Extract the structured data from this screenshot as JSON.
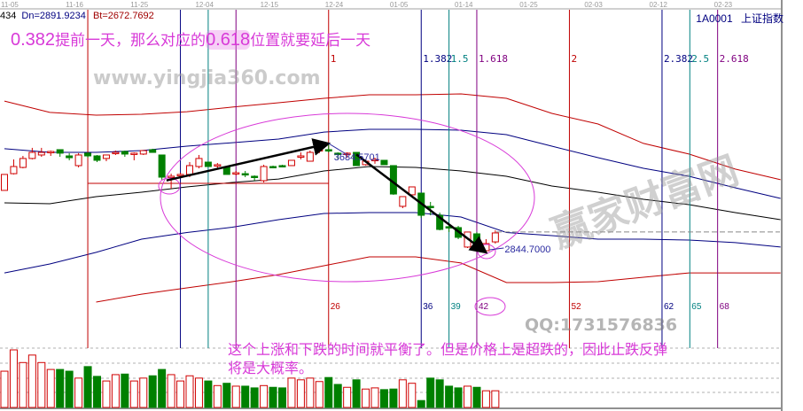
{
  "header": {
    "info_prefix": "434",
    "dn": "Dn=2891.9234",
    "bt": "Bt=2672.7692",
    "symbol_code": "1A0001",
    "symbol_name": "上证指数"
  },
  "annotations": {
    "top_note": {
      "ratio_a": "0.382",
      "text_a": "提前一天，那么对应的",
      "ratio_b": "0.618",
      "text_b": "位置就要延后一天"
    },
    "bottom_note_line1": "这个上涨和下跌的时间就平衡了。但是价格上是超跌的，因此止跌反弹",
    "bottom_note_line2": "将是大概率。",
    "high_label": "3684.5701",
    "low_label": "2844.7000"
  },
  "watermarks": {
    "brand": "赢家财富网",
    "site": "www.yingjia360.com",
    "qq": "QQ:1731576836"
  },
  "colors": {
    "up": "#d00000",
    "down": "#008000",
    "fib_red": "#c00000",
    "fib_blue": "#000080",
    "fib_teal": "#008080",
    "fib_purple": "#800080",
    "annotation": "#d83ad8",
    "label_blue": "#2a2aa0"
  },
  "chart_data": {
    "type": "candlestick",
    "title": "",
    "x_ticks": [
      {
        "index": 0,
        "label": "11-05"
      },
      {
        "index": 7,
        "label": "11-16"
      },
      {
        "index": 14,
        "label": "11-25"
      },
      {
        "index": 21,
        "label": "12-04"
      },
      {
        "index": 28,
        "label": "12-15"
      },
      {
        "index": 35,
        "label": "12-24"
      },
      {
        "index": 42,
        "label": "01-05"
      },
      {
        "index": 49,
        "label": "01-14"
      },
      {
        "index": 56,
        "label": "01-25"
      },
      {
        "index": 63,
        "label": "02-03"
      },
      {
        "index": 70,
        "label": "02-12"
      },
      {
        "index": 77,
        "label": "02-23"
      }
    ],
    "candles_ohlc": [
      [
        3323,
        3446,
        3323,
        3446
      ],
      [
        3452,
        3562,
        3446,
        3507
      ],
      [
        3500,
        3589,
        3493,
        3569
      ],
      [
        3569,
        3651,
        3562,
        3616
      ],
      [
        3596,
        3651,
        3582,
        3616
      ],
      [
        3616,
        3630,
        3589,
        3623
      ],
      [
        3637,
        3637,
        3582,
        3610
      ],
      [
        3589,
        3610,
        3555,
        3575
      ],
      [
        3514,
        3610,
        3500,
        3596
      ],
      [
        3610,
        3616,
        3575,
        3589
      ],
      [
        3589,
        3596,
        3541,
        3555
      ],
      [
        3569,
        3596,
        3548,
        3596
      ],
      [
        3610,
        3630,
        3596,
        3616
      ],
      [
        3623,
        3630,
        3582,
        3603
      ],
      [
        3603,
        3616,
        3555,
        3610
      ],
      [
        3603,
        3630,
        3596,
        3630
      ],
      [
        3637,
        3644,
        3616,
        3616
      ],
      [
        3596,
        3596,
        3405,
        3425
      ],
      [
        3425,
        3452,
        3336,
        3432
      ],
      [
        3439,
        3459,
        3425,
        3446
      ],
      [
        3446,
        3541,
        3425,
        3514
      ],
      [
        3507,
        3596,
        3493,
        3569
      ],
      [
        3541,
        3541,
        3507,
        3507
      ],
      [
        3514,
        3534,
        3493,
        3521
      ],
      [
        3500,
        3500,
        3446,
        3446
      ],
      [
        3452,
        3473,
        3439,
        3459
      ],
      [
        3452,
        3473,
        3425,
        3446
      ],
      [
        3432,
        3439,
        3398,
        3425
      ],
      [
        3398,
        3521,
        3384,
        3507
      ],
      [
        3507,
        3514,
        3493,
        3500
      ],
      [
        3514,
        3521,
        3500,
        3507
      ],
      [
        3514,
        3555,
        3514,
        3555
      ],
      [
        3582,
        3616,
        3562,
        3589
      ],
      [
        3548,
        3630,
        3548,
        3616
      ],
      [
        3630,
        3664,
        3610,
        3637
      ],
      [
        3637,
        3684.57,
        3616,
        3630
      ],
      [
        3610,
        3616,
        3562,
        3603
      ],
      [
        3603,
        3616,
        3575,
        3610
      ],
      [
        3616,
        3616,
        3514,
        3514
      ],
      [
        3521,
        3562,
        3514,
        3548
      ],
      [
        3555,
        3575,
        3528,
        3562
      ],
      [
        3555,
        3555,
        3521,
        3521
      ],
      [
        3514,
        3514,
        3289,
        3295
      ],
      [
        3200,
        3275,
        3186,
        3275
      ],
      [
        3289,
        3350,
        3275,
        3350
      ],
      [
        3302,
        3302,
        3111,
        3131
      ],
      [
        3200,
        3234,
        3131,
        3193
      ],
      [
        3131,
        3152,
        3015,
        3022
      ],
      [
        3043,
        3056,
        3002,
        3036
      ],
      [
        3036,
        3049,
        2947,
        2961
      ],
      [
        2886,
        3002,
        2879,
        3002
      ],
      [
        2988,
        3002,
        2879,
        2899
      ],
      [
        2858,
        2947,
        2844.7,
        2913
      ],
      [
        2926,
        3015,
        2913,
        2995
      ]
    ],
    "volume_relative": [
      63,
      100,
      78,
      91,
      78,
      66,
      66,
      63,
      51,
      71,
      54,
      46,
      57,
      58,
      46,
      51,
      55,
      66,
      57,
      46,
      55,
      51,
      46,
      38,
      42,
      37,
      37,
      34,
      38,
      35,
      34,
      51,
      48,
      51,
      45,
      52,
      40,
      35,
      48,
      32,
      34,
      31,
      32,
      48,
      42,
      12,
      51,
      48,
      37,
      34,
      37,
      35,
      29,
      29
    ],
    "bands": [
      {
        "color": "#c00000",
        "points": [
          [
            0,
            4012
          ],
          [
            4.9,
            3924
          ],
          [
            9.9,
            3903
          ],
          [
            14.8,
            3910
          ],
          [
            19.7,
            3930
          ],
          [
            24.6,
            3965
          ],
          [
            29.6,
            3999
          ],
          [
            34.5,
            4033
          ],
          [
            39.4,
            4060
          ],
          [
            44.4,
            4060
          ],
          [
            49.3,
            4067
          ],
          [
            54.2,
            4033
          ],
          [
            59.1,
            3917
          ],
          [
            64.1,
            3835
          ],
          [
            69,
            3685
          ],
          [
            73.9,
            3603
          ],
          [
            78.9,
            3487
          ],
          [
            83.8,
            3405
          ]
        ]
      },
      {
        "color": "#000080",
        "points": [
          [
            0,
            3644
          ],
          [
            4.9,
            3616
          ],
          [
            9.9,
            3616
          ],
          [
            14.8,
            3630
          ],
          [
            19.7,
            3664
          ],
          [
            24.6,
            3691
          ],
          [
            29.6,
            3719
          ],
          [
            34.5,
            3773
          ],
          [
            39.4,
            3794
          ],
          [
            44.4,
            3794
          ],
          [
            49.3,
            3787
          ],
          [
            54.2,
            3753
          ],
          [
            59.1,
            3664
          ],
          [
            64.1,
            3575
          ],
          [
            69,
            3493
          ],
          [
            73.9,
            3432
          ],
          [
            78.9,
            3343
          ],
          [
            83.8,
            3261
          ]
        ]
      },
      {
        "color": "#000000",
        "points": [
          [
            0,
            3227
          ],
          [
            4.9,
            3220
          ],
          [
            9.9,
            3275
          ],
          [
            14.8,
            3309
          ],
          [
            19.7,
            3350
          ],
          [
            24.6,
            3384
          ],
          [
            29.6,
            3411
          ],
          [
            34.5,
            3473
          ],
          [
            39.4,
            3507
          ],
          [
            44.4,
            3500
          ],
          [
            49.3,
            3473
          ],
          [
            54.2,
            3432
          ],
          [
            59.1,
            3357
          ],
          [
            64.1,
            3309
          ],
          [
            69,
            3254
          ],
          [
            73.9,
            3213
          ],
          [
            78.9,
            3152
          ],
          [
            83.8,
            3097
          ]
        ]
      },
      {
        "color": "#000080",
        "points": [
          [
            0,
            2687
          ],
          [
            4.9,
            2756
          ],
          [
            9.9,
            2845
          ],
          [
            14.8,
            2947
          ],
          [
            19.7,
            2998
          ],
          [
            24.6,
            3039
          ],
          [
            29.6,
            3097
          ],
          [
            34.5,
            3145
          ],
          [
            39.4,
            3152
          ],
          [
            44.4,
            3152
          ],
          [
            49.3,
            3118
          ],
          [
            54.2,
            2998
          ],
          [
            59.1,
            2974
          ],
          [
            64.1,
            2947
          ],
          [
            69,
            2947
          ],
          [
            73.9,
            2940
          ],
          [
            78.9,
            2920
          ],
          [
            83.8,
            2886
          ]
        ]
      },
      {
        "color": "#c00000",
        "points": [
          [
            9.9,
            2462
          ],
          [
            14.8,
            2523
          ],
          [
            19.7,
            2571
          ],
          [
            24.6,
            2619
          ],
          [
            29.6,
            2674
          ],
          [
            34.5,
            2742
          ],
          [
            39.4,
            2810
          ],
          [
            44.4,
            2810
          ],
          [
            49.3,
            2763
          ],
          [
            54.2,
            2612
          ],
          [
            59.1,
            2612
          ],
          [
            64.1,
            2619
          ],
          [
            69,
            2653
          ],
          [
            73.9,
            2687
          ],
          [
            78.9,
            2687
          ],
          [
            83.8,
            2687
          ]
        ]
      }
    ],
    "fib_time": {
      "start_index": 9,
      "reference_price": 3377,
      "lines": [
        {
          "offset": 0,
          "ratio": "",
          "count": "",
          "color": "#c00000"
        },
        {
          "offset": 10,
          "ratio": "",
          "count": "",
          "color": "#000080"
        },
        {
          "offset": 13,
          "ratio": "",
          "count": "",
          "color": "#008080"
        },
        {
          "offset": 16,
          "ratio": "",
          "count": "",
          "color": "#800080"
        },
        {
          "offset": 26,
          "ratio": "1",
          "count": "26",
          "color": "#c00000"
        },
        {
          "offset": 36,
          "ratio": "1.382",
          "count": "36",
          "color": "#000080"
        },
        {
          "offset": 39,
          "ratio": "1.5",
          "count": "39",
          "color": "#008080"
        },
        {
          "offset": 42,
          "ratio": "1.618",
          "count": "42",
          "color": "#800080"
        },
        {
          "offset": 52,
          "ratio": "2",
          "count": "52",
          "color": "#c00000"
        },
        {
          "offset": 62,
          "ratio": "2.382",
          "count": "62",
          "color": "#000080"
        },
        {
          "offset": 65,
          "ratio": "2.5",
          "count": "65",
          "color": "#008080"
        },
        {
          "offset": 68,
          "ratio": "2.618",
          "count": "68",
          "color": "#800080"
        }
      ]
    },
    "last_price_line": 3002,
    "trend_arrows": [
      {
        "from": [
          17.5,
          3400
        ],
        "to": [
          35,
          3684.57
        ]
      },
      {
        "from": [
          38,
          3600
        ],
        "to": [
          52,
          2844.7
        ]
      }
    ],
    "grid": "volume panel dashed"
  }
}
